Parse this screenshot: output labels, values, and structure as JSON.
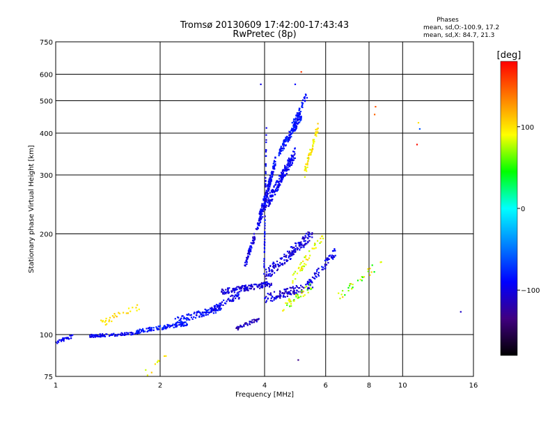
{
  "chart_data": {
    "type": "scatter",
    "title": "Tromsø 20130609 17:42:00-17:43:43",
    "subtitle": "RwPretec (8p)",
    "xlabel": "Frequency [MHz]",
    "ylabel": "Stationary phase Virtual Height [km]",
    "x_scale": "log",
    "y_scale": "log",
    "xlim": [
      1,
      16
    ],
    "ylim": [
      75,
      750
    ],
    "x_ticks": [
      1,
      2,
      4,
      6,
      8,
      10,
      16
    ],
    "y_ticks": [
      75,
      100,
      200,
      300,
      400,
      500,
      600,
      750
    ],
    "grid": true,
    "phase_info": {
      "heading": "Phases",
      "line1": "mean, sd,O:-100.9, 17.2",
      "line2": "mean, sd,X: 84.7, 21.3"
    },
    "colorbar": {
      "label": "[deg]",
      "range": [
        -180,
        180
      ],
      "ticks": [
        100,
        0,
        -100
      ],
      "tick_labels": [
        "100",
        "0",
        "−100"
      ],
      "colors": [
        "#ff0000",
        "#ff8000",
        "#ffff00",
        "#00ff00",
        "#00ffff",
        "#0080ff",
        "#0000ff",
        "#400080",
        "#000000"
      ]
    },
    "series": [
      {
        "segments": [
          {
            "f": [
              1.0,
              1.12
            ],
            "h": [
              95,
              99
            ],
            "spread": 0.012,
            "n": 30,
            "phase": [
              -100,
              -85
            ]
          },
          {
            "f": [
              1.25,
              1.75
            ],
            "h": [
              99,
              101
            ],
            "spread": 0.01,
            "n": 90,
            "phase": [
              -105,
              -80
            ]
          },
          {
            "f": [
              1.7,
              2.4
            ],
            "h": [
              102,
              108
            ],
            "spread": 0.014,
            "n": 110,
            "phase": [
              -95,
              -70
            ]
          },
          {
            "f": [
              2.2,
              3.0
            ],
            "h": [
              110,
              120
            ],
            "spread": 0.022,
            "n": 100,
            "phase": [
              -100,
              -70
            ]
          },
          {
            "f": [
              2.8,
              3.4
            ],
            "h": [
              118,
              132
            ],
            "spread": 0.025,
            "n": 70,
            "phase": [
              -110,
              -80
            ]
          },
          {
            "f": [
              3.0,
              4.2
            ],
            "h": [
              134,
              142
            ],
            "spread": 0.02,
            "n": 140,
            "phase": [
              -120,
              -90
            ]
          },
          {
            "f": [
              3.3,
              3.9
            ],
            "h": [
              104,
              112
            ],
            "spread": 0.012,
            "n": 45,
            "phase": [
              -130,
              -95
            ]
          },
          {
            "f": [
              3.5,
              4.1
            ],
            "h": [
              160,
              260
            ],
            "spread": 0.03,
            "n": 110,
            "phase": [
              -115,
              -85
            ]
          },
          {
            "f": [
              3.85,
              4.3
            ],
            "h": [
              220,
              330
            ],
            "spread": 0.035,
            "n": 150,
            "phase": [
              -105,
              -75
            ]
          },
          {
            "f": [
              4.1,
              4.9
            ],
            "h": [
              250,
              350
            ],
            "spread": 0.04,
            "n": 190,
            "phase": [
              -105,
              -80
            ]
          },
          {
            "f": [
              4.4,
              5.1
            ],
            "h": [
              350,
              450
            ],
            "spread": 0.03,
            "n": 140,
            "phase": [
              -100,
              -70
            ]
          },
          {
            "f": [
              4.8,
              5.3
            ],
            "h": [
              420,
              520
            ],
            "spread": 0.025,
            "n": 55,
            "phase": [
              -95,
              -70
            ]
          },
          {
            "f": [
              4.0,
              5.5
            ],
            "h": [
              150,
              200
            ],
            "spread": 0.04,
            "n": 160,
            "phase": [
              -120,
              -85
            ]
          },
          {
            "f": [
              4.0,
              5.5
            ],
            "h": [
              128,
              140
            ],
            "spread": 0.03,
            "n": 110,
            "phase": [
              -125,
              -90
            ]
          },
          {
            "f": [
              5.3,
              6.5
            ],
            "h": [
              140,
              180
            ],
            "spread": 0.03,
            "n": 70,
            "phase": [
              -115,
              -80
            ]
          },
          {
            "f": [
              3.98,
              4.05
            ],
            "h": [
              140,
              420
            ],
            "spread": 0.05,
            "n": 60,
            "phase": [
              -110,
              -80
            ]
          }
        ]
      },
      {
        "segments": [
          {
            "f": [
              1.35,
              1.75
            ],
            "h": [
              108,
              122
            ],
            "spread": 0.025,
            "n": 30,
            "phase": [
              90,
              115
            ]
          },
          {
            "f": [
              1.8,
              2.1
            ],
            "h": [
              76,
              86
            ],
            "spread": 0.03,
            "n": 10,
            "phase": [
              80,
              115
            ]
          },
          {
            "f": [
              5.2,
              5.7
            ],
            "h": [
              300,
              420
            ],
            "spread": 0.035,
            "n": 55,
            "phase": [
              80,
              110
            ]
          },
          {
            "f": [
              4.8,
              5.9
            ],
            "h": [
              145,
              200
            ],
            "spread": 0.035,
            "n": 45,
            "phase": [
              70,
              110
            ]
          },
          {
            "f": [
              4.5,
              5.5
            ],
            "h": [
              120,
              140
            ],
            "spread": 0.03,
            "n": 40,
            "phase": [
              50,
              105
            ]
          },
          {
            "f": [
              6.5,
              8.7
            ],
            "h": [
              130,
              165
            ],
            "spread": 0.03,
            "n": 30,
            "phase": [
              40,
              115
            ]
          }
        ],
        "points": [
          {
            "f": 5.1,
            "h": 610,
            "phase": 160
          },
          {
            "f": 8.35,
            "h": 480,
            "phase": 150
          },
          {
            "f": 8.3,
            "h": 455,
            "phase": 145
          },
          {
            "f": 11.1,
            "h": 430,
            "phase": 100
          },
          {
            "f": 11.2,
            "h": 412,
            "phase": -60
          },
          {
            "f": 11.0,
            "h": 370,
            "phase": 175
          },
          {
            "f": 14.7,
            "h": 117,
            "phase": -110
          },
          {
            "f": 4.9,
            "h": 560,
            "phase": -90
          },
          {
            "f": 3.9,
            "h": 560,
            "phase": -100
          },
          {
            "f": 5.0,
            "h": 84,
            "phase": -130
          }
        ]
      }
    ]
  }
}
